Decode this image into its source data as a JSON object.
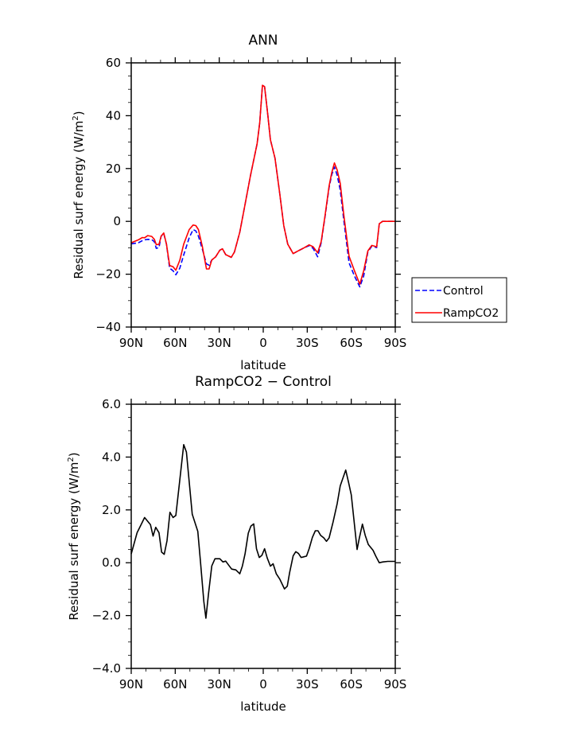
{
  "chart_data": [
    {
      "type": "line",
      "title": "ANN",
      "xlabel": "latitude",
      "ylabel": "Residual surf energy (W/m²)",
      "ylabel_main": "Residual surf energy (W/m",
      "ylabel_sup": "2",
      "ylabel_end": ")",
      "xlim": [
        90,
        -90
      ],
      "ylim": [
        -40,
        60
      ],
      "x_ticks": [
        90,
        60,
        30,
        0,
        -30,
        -60,
        -90
      ],
      "x_tick_labels": [
        "90N",
        "60N",
        "30N",
        "0",
        "30S",
        "60S",
        "90S"
      ],
      "y_ticks": [
        60,
        40,
        20,
        0,
        -20,
        -40
      ],
      "y_tick_labels": [
        "60",
        "40",
        "20",
        "0",
        "−20",
        "−40"
      ],
      "y_minor_step": 5,
      "legend_placement": "right",
      "x": [
        90,
        85.1,
        82.4,
        80.9,
        78.7,
        76,
        74.2,
        72.9,
        71.1,
        69.6,
        67.8,
        66,
        63.8,
        61.5,
        59.6,
        56.9,
        54.2,
        50.5,
        47.8,
        46,
        44.2,
        41.5,
        38.7,
        36.9,
        35.1,
        32.4,
        29.6,
        27.8,
        25.6,
        21.8,
        19.6,
        16,
        12.4,
        8.7,
        4.2,
        2.4,
        0.55,
        -0.9,
        -3.1,
        -4.9,
        -8,
        -11.3,
        -14,
        -16.7,
        -20.4,
        -24,
        -27.6,
        -31.3,
        -34,
        -37.1,
        -39.5,
        -42.2,
        -44.9,
        -46.7,
        -48.5,
        -50.4,
        -52.5,
        -54.9,
        -58.5,
        -62.2,
        -65.8,
        -68.5,
        -71.3,
        -74,
        -77.3,
        -79.1,
        -81.3,
        -90
      ],
      "series": [
        {
          "name": "Control",
          "color": "#0000ff",
          "dash": "dashed",
          "values": [
            -8.5,
            -8.1,
            -7.3,
            -7.0,
            -6.8,
            -6.9,
            -7.7,
            -10.2,
            -9.9,
            -5.6,
            -4.6,
            -8.6,
            -17.7,
            -18.7,
            -20.2,
            -17.7,
            -12.7,
            -6.2,
            -3.1,
            -3.6,
            -5.6,
            -10.6,
            -16.1,
            -16.6,
            -14.6,
            -13.4,
            -10.9,
            -10.4,
            -12.6,
            -13.6,
            -11.6,
            -4.1,
            6.4,
            17.4,
            29.4,
            37.4,
            51.5,
            51,
            40.4,
            30.9,
            23.9,
            10.4,
            -1.6,
            -8.6,
            -12.2,
            -11.1,
            -10.1,
            -9.2,
            -10.2,
            -13.4,
            -8.0,
            2.0,
            12.8,
            17.6,
            20.6,
            17.4,
            11.9,
            0.4,
            -15.7,
            -20.7,
            -24.8,
            -20.7,
            -11.6,
            -9.4,
            -9.9,
            -0.9,
            0,
            0
          ]
        },
        {
          "name": "RampCO2",
          "color": "#ff0000",
          "dash": "solid",
          "values": [
            -8.1,
            -7.0,
            -6.1,
            -6.2,
            -5.4,
            -5.7,
            -6.8,
            -8.8,
            -8.7,
            -5.6,
            -4.4,
            -8.6,
            -16.7,
            -17.2,
            -18.5,
            -14.7,
            -8.6,
            -3.1,
            -1.4,
            -1.6,
            -3.1,
            -9.6,
            -18,
            -18,
            -14.6,
            -13.4,
            -10.9,
            -10.4,
            -12.6,
            -13.6,
            -11.6,
            -4.1,
            6.4,
            17.4,
            29.4,
            37.4,
            51.5,
            51,
            40.4,
            30.9,
            23.9,
            10.4,
            -1.6,
            -8.6,
            -12.2,
            -11.1,
            -10.1,
            -8.9,
            -9.6,
            -11.9,
            -7.6,
            2.4,
            13.4,
            18.4,
            22.1,
            19.4,
            14.4,
            2.4,
            -13.2,
            -18.7,
            -23.8,
            -18.7,
            -11.2,
            -9.1,
            -9.6,
            -0.9,
            0,
            0
          ]
        }
      ]
    },
    {
      "type": "line",
      "title": "RampCO2 − Control",
      "xlabel": "latitude",
      "ylabel": "Residual surf energy (W/m²)",
      "ylabel_main": "Residual surf energy (W/m",
      "ylabel_sup": "2",
      "ylabel_end": ")",
      "xlim": [
        90,
        -90
      ],
      "ylim": [
        -4,
        6
      ],
      "x_ticks": [
        90,
        60,
        30,
        0,
        -30,
        -60,
        -90
      ],
      "x_tick_labels": [
        "90N",
        "60N",
        "30N",
        "0",
        "30S",
        "60S",
        "90S"
      ],
      "y_ticks": [
        6,
        4,
        2,
        0,
        -2,
        -4
      ],
      "y_tick_labels": [
        "6.0",
        "4.0",
        "2.0",
        "0.0",
        "−2.0",
        "−4.0"
      ],
      "y_minor_step": 0.5,
      "x": [
        90,
        86,
        83.3,
        80.9,
        76.9,
        75.1,
        73.3,
        71.1,
        69.3,
        67.5,
        65.6,
        63.6,
        61.5,
        59.6,
        56.9,
        54.2,
        52.4,
        48.4,
        44.6,
        42.8,
        40.5,
        39.1,
        37.3,
        35.1,
        32.9,
        29.6,
        27.5,
        25.6,
        23.6,
        21.5,
        18.7,
        16,
        14.2,
        12.4,
        10.2,
        8.4,
        6.5,
        4.6,
        2.7,
        0.9,
        -0.9,
        -2.7,
        -4.9,
        -6.7,
        -8.9,
        -11.3,
        -14.5,
        -16.4,
        -18,
        -20.4,
        -22.2,
        -24,
        -25.8,
        -29.5,
        -31.3,
        -33.5,
        -35.5,
        -37.3,
        -39.1,
        -41.3,
        -43.1,
        -44.9,
        -47.6,
        -50.4,
        -52.5,
        -56.2,
        -58.2,
        -60,
        -64,
        -65.5,
        -67.6,
        -69.5,
        -71.6,
        -74.9,
        -76.7,
        -79.1,
        -81.6,
        -84.9,
        -90
      ],
      "series": [
        {
          "name": "RampCO2 − Control",
          "color": "#000000",
          "dash": "solid",
          "values": [
            0.33,
            1.14,
            1.44,
            1.71,
            1.44,
            1.01,
            1.34,
            1.14,
            0.4,
            0.32,
            0.83,
            1.91,
            1.71,
            1.79,
            3.14,
            4.47,
            4.19,
            1.84,
            1.19,
            0.03,
            -1.47,
            -2.1,
            -1.17,
            -0.12,
            0.15,
            0.15,
            0.03,
            0.06,
            -0.09,
            -0.24,
            -0.27,
            -0.42,
            -0.12,
            0.33,
            1.12,
            1.39,
            1.47,
            0.53,
            0.2,
            0.28,
            0.53,
            0.18,
            -0.13,
            -0.04,
            -0.42,
            -0.62,
            -0.99,
            -0.89,
            -0.37,
            0.26,
            0.42,
            0.35,
            0.2,
            0.25,
            0.53,
            0.96,
            1.21,
            1.21,
            1.04,
            0.94,
            0.81,
            0.94,
            1.54,
            2.24,
            2.91,
            3.51,
            3.04,
            2.57,
            0.5,
            0.93,
            1.46,
            1.04,
            0.69,
            0.47,
            0.25,
            0.0,
            0.03,
            0.05,
            0.05
          ]
        }
      ]
    }
  ]
}
